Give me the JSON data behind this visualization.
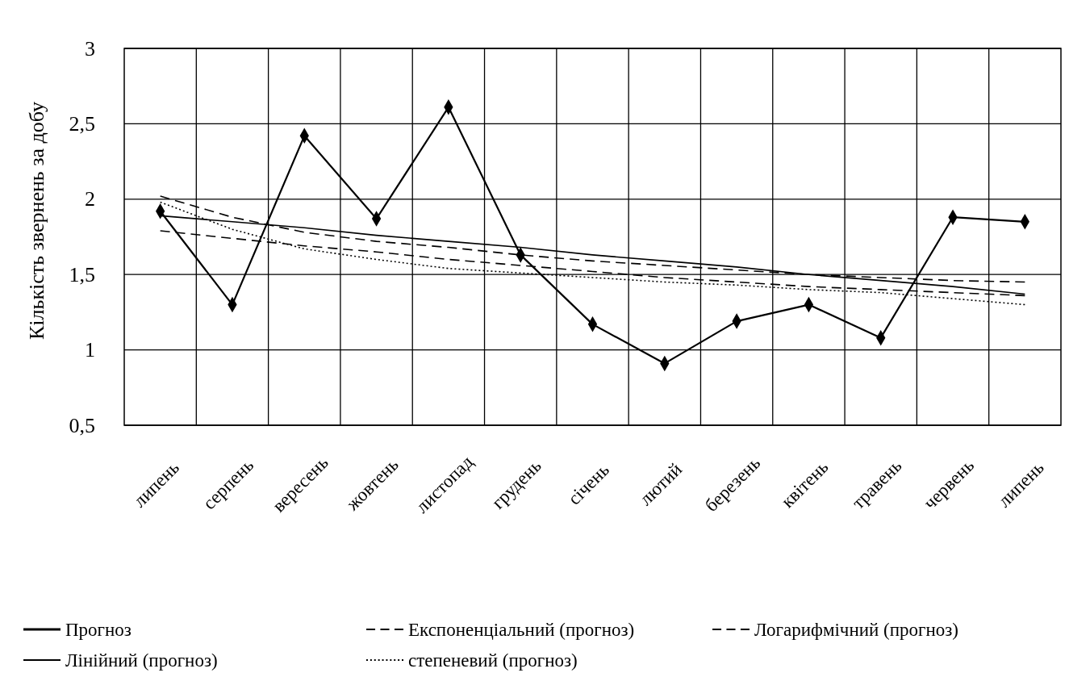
{
  "chart_data": {
    "type": "line",
    "ylabel": "Кількість звернень за добу",
    "categories": [
      "липень",
      "серпень",
      "вересень",
      "жовтень",
      "листопад",
      "грудень",
      "січень",
      "лютий",
      "березень",
      "квітень",
      "травень",
      "червень",
      "липень"
    ],
    "series": [
      {
        "name": "Прогноз",
        "color": "#000000",
        "marker": "diamond",
        "line_style": "solid",
        "values": [
          1.92,
          1.3,
          2.42,
          1.87,
          2.61,
          1.63,
          1.17,
          0.91,
          1.19,
          1.3,
          1.08,
          1.88,
          1.85
        ]
      },
      {
        "name": "Експоненціальний (прогноз)",
        "color": "#000000",
        "line_style": "dashed",
        "values": [
          1.79,
          1.74,
          1.69,
          1.65,
          1.6,
          1.56,
          1.52,
          1.48,
          1.45,
          1.42,
          1.4,
          1.38,
          1.36
        ]
      },
      {
        "name": "Логарифмічний (прогноз)",
        "color": "#000000",
        "line_style": "dashed",
        "values": [
          2.02,
          1.88,
          1.78,
          1.72,
          1.68,
          1.63,
          1.59,
          1.56,
          1.53,
          1.5,
          1.48,
          1.46,
          1.45
        ]
      },
      {
        "name": "Лінійний (прогноз)",
        "color": "#000000",
        "line_style": "solid",
        "values": [
          1.89,
          1.85,
          1.81,
          1.76,
          1.72,
          1.68,
          1.63,
          1.59,
          1.55,
          1.5,
          1.46,
          1.42,
          1.37
        ]
      },
      {
        "name": "степеневий (прогноз)",
        "color": "#000000",
        "line_style": "dotted",
        "values": [
          1.98,
          1.8,
          1.67,
          1.6,
          1.54,
          1.51,
          1.48,
          1.45,
          1.43,
          1.4,
          1.38,
          1.34,
          1.3
        ]
      }
    ],
    "ylim": [
      0.5,
      3
    ],
    "yticks": [
      {
        "value": 0.5,
        "label": "0,5"
      },
      1,
      {
        "value": 1.5,
        "label": "1,5"
      },
      2,
      {
        "value": 2.5,
        "label": "2,5"
      },
      3
    ],
    "grid": true,
    "legend": "bottom"
  }
}
